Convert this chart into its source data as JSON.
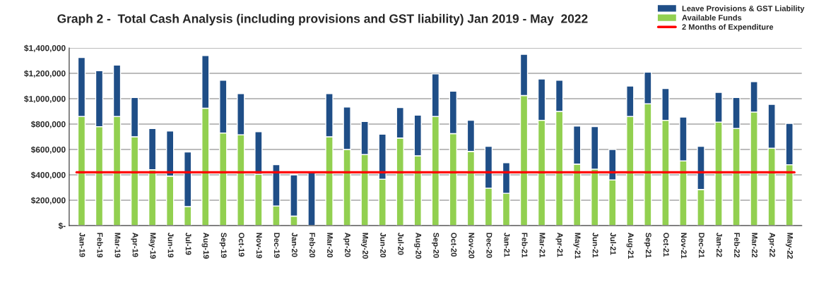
{
  "chart_data": {
    "type": "bar",
    "title": "Graph 2 -  Total Cash Analysis (including provisions and GST liability) Jan 2019 - May  2022",
    "categories": [
      "Jan-19",
      "Feb-19",
      "Mar-19",
      "Apr-19",
      "May-19",
      "Jun-19",
      "Jul-19",
      "Aug-19",
      "Sep-19",
      "Oct-19",
      "Nov-19",
      "Dec-19",
      "Jan-20",
      "Feb-20",
      "Mar-20",
      "Apr-20",
      "May-20",
      "Jun-20",
      "Jul-20",
      "Aug-20",
      "Sep-20",
      "Oct-20",
      "Nov-20",
      "Dec-20",
      "Jan-21",
      "Feb-21",
      "Mar-21",
      "Apr-21",
      "May-21",
      "Jun-21",
      "Jul-21",
      "Aug-21",
      "Sep-21",
      "Oct-21",
      "Nov-21",
      "Dec-21",
      "Jan-22",
      "Feb-22",
      "Mar-22",
      "Apr-22",
      "May-22"
    ],
    "stacked": true,
    "series": [
      {
        "name": "Available Funds",
        "color": "#92d050",
        "values": [
          860000,
          780000,
          860000,
          700000,
          440000,
          390000,
          150000,
          925000,
          730000,
          715000,
          405000,
          155000,
          75000,
          0,
          700000,
          600000,
          560000,
          365000,
          690000,
          550000,
          860000,
          725000,
          585000,
          295000,
          255000,
          1025000,
          830000,
          900000,
          485000,
          445000,
          360000,
          860000,
          960000,
          830000,
          510000,
          285000,
          815000,
          765000,
          895000,
          610000,
          480000
        ]
      },
      {
        "name": "Leave Provisions & GST Liability",
        "color": "#1f4e87",
        "values": [
          465000,
          440000,
          405000,
          310000,
          325000,
          355000,
          430000,
          415000,
          415000,
          325000,
          335000,
          325000,
          325000,
          420000,
          340000,
          335000,
          260000,
          355000,
          240000,
          320000,
          335000,
          335000,
          245000,
          330000,
          240000,
          325000,
          325000,
          245000,
          300000,
          335000,
          240000,
          240000,
          250000,
          250000,
          345000,
          340000,
          235000,
          245000,
          240000,
          345000,
          325000
        ]
      }
    ],
    "ref_lines": [
      {
        "axis": "y",
        "value": 420000,
        "label": "2 Months of Expenditure",
        "color": "#ff0000"
      }
    ],
    "ylim": [
      0,
      1400000
    ],
    "yticks": [
      {
        "value": 0,
        "label": "$-"
      },
      {
        "value": 200000,
        "label": "$200,000"
      },
      {
        "value": 400000,
        "label": "$400,000"
      },
      {
        "value": 600000,
        "label": "$600,000"
      },
      {
        "value": 800000,
        "label": "$800,000"
      },
      {
        "value": 1000000,
        "label": "$1,000,000"
      },
      {
        "value": 1200000,
        "label": "$1,200,000"
      },
      {
        "value": 1400000,
        "label": "$1,400,000"
      }
    ],
    "grid": "y",
    "legend": "top right"
  }
}
